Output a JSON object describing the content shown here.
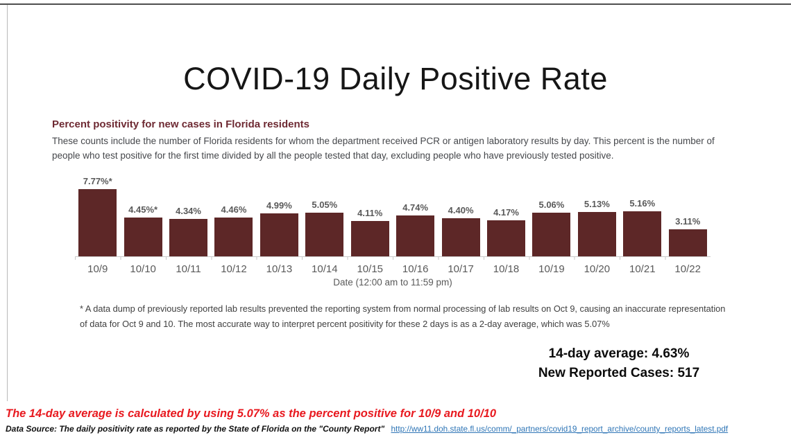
{
  "page": {
    "title": "COVID-19 Daily Positive Rate"
  },
  "chart": {
    "heading": "Percent positivity for new cases in Florida residents",
    "description": "These counts include the number of Florida residents for whom the department received PCR or antigen laboratory results by day. This percent is the number of people who test positive for the first time divided by all the people tested that day, excluding people who have previously tested positive.",
    "footnote": "* A data dump of previously reported lab results prevented the reporting system from normal processing of lab results on Oct 9, causing an inaccurate representation of data for Oct 9 and 10. The most accurate way to interpret percent positivity for these 2 days is as a 2-day average, which was 5.07%"
  },
  "chart_data": {
    "type": "bar",
    "title": "Percent positivity for new cases in Florida residents",
    "categories": [
      "10/9",
      "10/10",
      "10/11",
      "10/12",
      "10/13",
      "10/14",
      "10/15",
      "10/16",
      "10/17",
      "10/18",
      "10/19",
      "10/20",
      "10/21",
      "10/22"
    ],
    "values": [
      7.77,
      4.45,
      4.34,
      4.46,
      4.99,
      5.05,
      4.11,
      4.74,
      4.4,
      4.17,
      5.06,
      5.13,
      5.16,
      3.11
    ],
    "value_labels": [
      "7.77%*",
      "4.45%*",
      "4.34%",
      "4.46%",
      "4.99%",
      "5.05%",
      "4.11%",
      "4.74%",
      "4.40%",
      "4.17%",
      "5.06%",
      "5.13%",
      "5.16%",
      "3.11%"
    ],
    "xlabel": "Date (12:00 am to 11:59 pm)",
    "ylabel": "",
    "ylim": [
      0,
      8
    ],
    "grid": false,
    "legend_position": "none",
    "bar_color": "#5d2727",
    "label_color": "#595959"
  },
  "stats": {
    "average": "14-day average: 4.63%",
    "new_cases": "New Reported Cases: 517"
  },
  "notes": {
    "red_note": "The 14-day average is calculated by using 5.07% as the percent positive for 10/9 and 10/10",
    "source_prefix": "Data Source: The daily positivity rate as reported by the State of Florida on the \"County Report\"",
    "source_link": "http://ww11.doh.state.fl.us/comm/_partners/covid19_report_archive/county_reports_latest.pdf"
  },
  "colors": {
    "bar": "#5d2727",
    "heading": "#6e2a33",
    "red_note": "#e8191f",
    "link": "#2e75b6",
    "axis_labels": "#595959"
  }
}
